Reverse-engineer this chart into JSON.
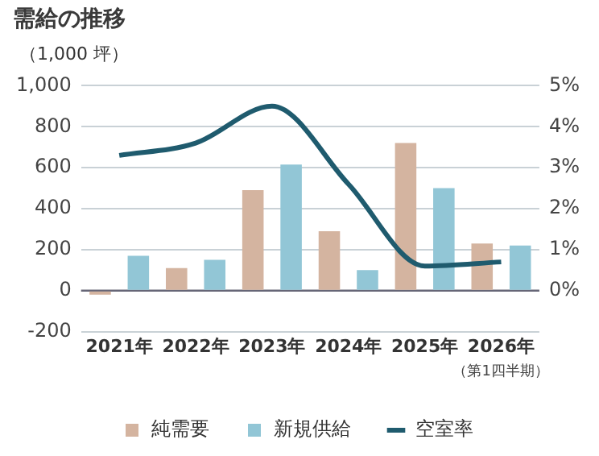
{
  "chart_data": {
    "type": "bar",
    "title": "需給の推移",
    "ylabel": "（1,000 坪）",
    "categories": [
      "2021年",
      "2022年",
      "2023年",
      "2024年",
      "2025年",
      "2026年"
    ],
    "annotations": [
      "（第1四半期）"
    ],
    "series": [
      {
        "name": "純需要",
        "color": "#d4b4a0",
        "values": [
          -20,
          110,
          490,
          290,
          720,
          230
        ]
      },
      {
        "name": "新規供給",
        "color": "#92c6d6",
        "values": [
          170,
          150,
          615,
          100,
          500,
          220
        ]
      },
      {
        "name": "空室率",
        "type": "line",
        "axis": "y2",
        "color": "#1f5b6e",
        "values": [
          3.3,
          3.6,
          4.5,
          2.6,
          0.6,
          0.7
        ]
      }
    ],
    "ylim": [
      -200,
      1000
    ],
    "yticks": [
      -200,
      0,
      200,
      400,
      600,
      800,
      {
        "value": 1000,
        "label": "1,000"
      }
    ],
    "y2lim": [
      -1,
      5
    ],
    "y2ticks": [
      {
        "value": 0,
        "label": "0%"
      },
      {
        "value": 1,
        "label": "1%"
      },
      {
        "value": 2,
        "label": "2%"
      },
      {
        "value": 3,
        "label": "3%"
      },
      {
        "value": 4,
        "label": "4%"
      },
      {
        "value": 5,
        "label": "5%"
      }
    ],
    "grid": "y",
    "legend": "bottom",
    "marker": "none"
  }
}
